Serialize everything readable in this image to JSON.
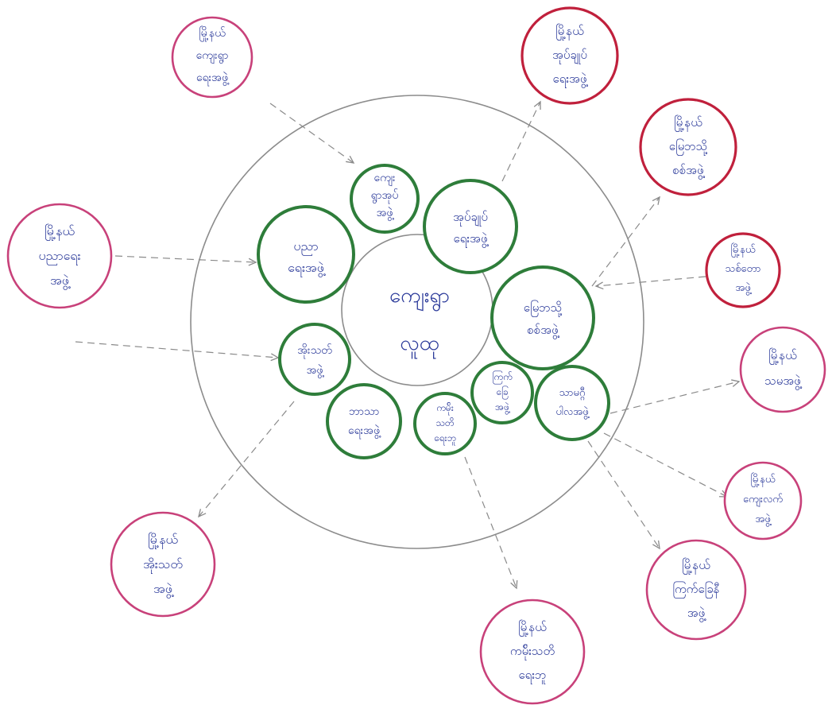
{
  "diagram": {
    "center": {
      "id": "community",
      "lines": [
        "ကျေးရွာ",
        "လူထု"
      ]
    },
    "inner_groups": [
      {
        "id": "elder",
        "lines": [
          "ကျေး",
          "ရွာအုပ်",
          "အဖွဲ့"
        ]
      },
      {
        "id": "health",
        "lines": [
          "အုပ်ချုပ်",
          "ရေးအဖွဲ့"
        ]
      },
      {
        "id": "youth",
        "lines": [
          "ပညာ",
          "ရေးအဖွဲ့"
        ]
      },
      {
        "id": "finance",
        "lines": [
          "မြေဘသို့",
          "စစ်အဖွဲ့"
        ]
      },
      {
        "id": "women",
        "lines": [
          "အိုးသတ်",
          "အဖွဲ့"
        ]
      },
      {
        "id": "religion",
        "lines": [
          "ဘာသာ",
          "ရေးအဖွဲ့"
        ]
      },
      {
        "id": "farmer",
        "lines": [
          "ကမ်ိုး",
          "သတိ",
          "ရေးဘူ"
        ]
      },
      {
        "id": "water",
        "lines": [
          "ကြက်",
          "ခြေ",
          "အဖွဲ့"
        ]
      },
      {
        "id": "social",
        "lines": [
          "သာမဂ္ဂီ",
          "ပါလအဖွဲ့"
        ]
      }
    ],
    "outer_groups": [
      {
        "id": "t-elder",
        "lines": [
          "မြို့နယ်",
          "ကျေးရွာ",
          "ရေးအဖွဲ့"
        ]
      },
      {
        "id": "t-health",
        "lines": [
          "မြို့နယ်",
          "အုပ်ချုပ်",
          "ရေးအဖွဲ့"
        ]
      },
      {
        "id": "t-finance",
        "lines": [
          "မြို့နယ်",
          "မြေဘသို့",
          "စစ်အဖွဲ့"
        ]
      },
      {
        "id": "t-youth",
        "lines": [
          "မြို့နယ်",
          "ပညာရေး",
          "အဖွဲ့"
        ]
      },
      {
        "id": "t-labour",
        "lines": [
          "မြို့နယ်",
          "သစ်တော",
          "အဖွဲ့"
        ]
      },
      {
        "id": "t-social",
        "lines": [
          "မြို့နယ်",
          "သမအဖွဲ့"
        ]
      },
      {
        "id": "t-agri",
        "lines": [
          "မြို့နယ်",
          "ကျေးလက်",
          "အဖွဲ့"
        ]
      },
      {
        "id": "t-women",
        "lines": [
          "မြို့နယ်",
          "အိုးသတ်",
          "အဖွဲ့"
        ]
      },
      {
        "id": "t-water",
        "lines": [
          "မြို့နယ်",
          "ကြက်ခြေနီ",
          "အဖွဲ့"
        ]
      },
      {
        "id": "t-farmer",
        "lines": [
          "မြို့နယ်",
          "ကမ်ိုးသတိ",
          "ရေးဘူ"
        ]
      }
    ]
  },
  "colors": {
    "inner_border": "#2e7d3a",
    "outer_border": "#c8417a",
    "text": "#2b3a9a",
    "ring": "#8c8c8c"
  }
}
